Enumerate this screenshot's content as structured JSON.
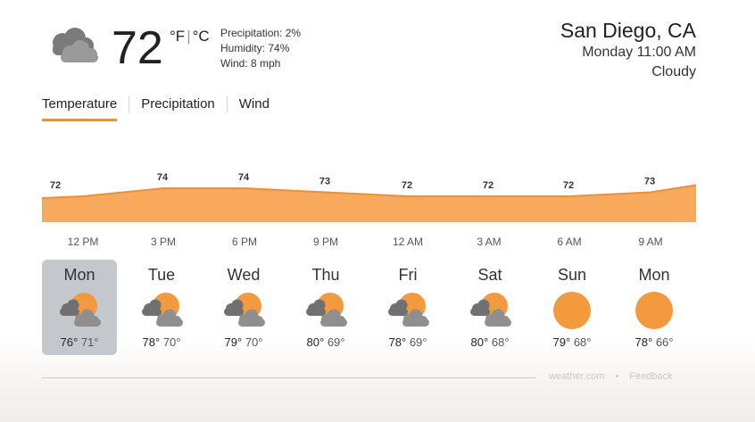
{
  "current": {
    "icon": "cloudy-icon",
    "temp": "72",
    "unit_f": "°F",
    "unit_sep": "|",
    "unit_c": "°C",
    "precipitation": "Precipitation: 2%",
    "humidity": "Humidity: 74%",
    "wind": "Wind: 8 mph"
  },
  "location": {
    "city": "San Diego, CA",
    "datetime": "Monday 11:00 AM",
    "condition": "Cloudy"
  },
  "tabs": [
    {
      "label": "Temperature",
      "active": true
    },
    {
      "label": "Precipitation",
      "active": false
    },
    {
      "label": "Wind",
      "active": false
    }
  ],
  "chart_data": {
    "type": "area",
    "x": [
      "12 PM",
      "3 PM",
      "6 PM",
      "9 PM",
      "12 AM",
      "3 AM",
      "6 AM",
      "9 AM"
    ],
    "values": [
      72,
      74,
      74,
      73,
      72,
      72,
      72,
      73
    ],
    "labels": [
      "72",
      "74",
      "74",
      "73",
      "72",
      "72",
      "72",
      "73"
    ],
    "fill_color": "#f9a95c",
    "line_color": "#e8913a"
  },
  "days": [
    {
      "name": "Mon",
      "icon": "partly-cloudy-icon",
      "high": "76°",
      "low": "71°",
      "selected": true
    },
    {
      "name": "Tue",
      "icon": "partly-cloudy-icon",
      "high": "78°",
      "low": "70°",
      "selected": false
    },
    {
      "name": "Wed",
      "icon": "partly-cloudy-icon",
      "high": "79°",
      "low": "70°",
      "selected": false
    },
    {
      "name": "Thu",
      "icon": "partly-cloudy-icon",
      "high": "80°",
      "low": "69°",
      "selected": false
    },
    {
      "name": "Fri",
      "icon": "partly-cloudy-icon",
      "high": "78°",
      "low": "69°",
      "selected": false
    },
    {
      "name": "Sat",
      "icon": "partly-cloudy-icon",
      "high": "80°",
      "low": "68°",
      "selected": false
    },
    {
      "name": "Sun",
      "icon": "sunny-icon",
      "high": "79°",
      "low": "68°",
      "selected": false
    },
    {
      "name": "Mon",
      "icon": "sunny-icon",
      "high": "78°",
      "low": "66°",
      "selected": false
    }
  ],
  "footer": {
    "source": "weather.com",
    "separator": "•",
    "feedback": "Feedback"
  }
}
